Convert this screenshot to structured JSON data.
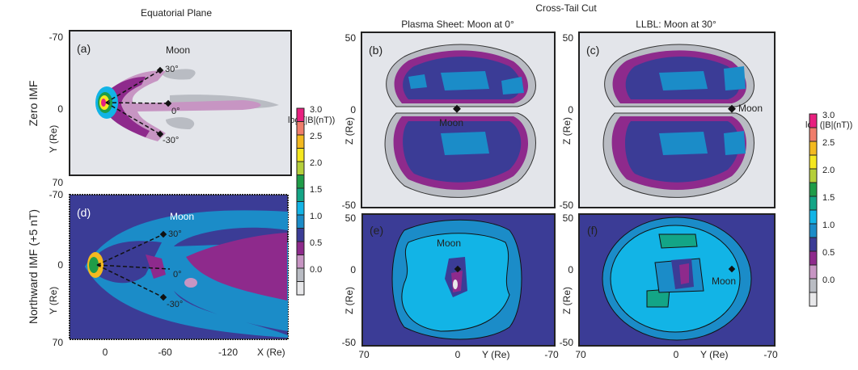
{
  "chart_data": {
    "type": "heatmap",
    "column_titles": {
      "equatorial": "Equatorial Plane",
      "cross_tail": "Cross-Tail Cut",
      "plasma_sheet": "Plasma Sheet: Moon at 0°",
      "llbl": "LLBL: Moon at 30°"
    },
    "row_labels": {
      "zero": "Zero IMF",
      "northward": "Northward IMF (+5 nT)"
    },
    "panels": {
      "a": {
        "label": "(a)",
        "moon": "Moon",
        "angles": [
          "30°",
          "0°",
          "-30°"
        ],
        "ylabel": "Y (Re)",
        "yticks": [
          "-70",
          "0",
          "70"
        ]
      },
      "b": {
        "label": "(b)",
        "moon": "Moon",
        "ylabel": "Z (Re)",
        "yticks": [
          "50",
          "0",
          "-50"
        ]
      },
      "c": {
        "label": "(c)",
        "moon": "Moon",
        "ylabel": "Z (Re)",
        "yticks": [
          "50",
          "0",
          "-50"
        ]
      },
      "d": {
        "label": "(d)",
        "moon": "Moon",
        "angles": [
          "30°",
          "0°",
          "-30°"
        ],
        "ylabel": "Y (Re)",
        "yticks": [
          "-70",
          "0",
          "70"
        ],
        "xticks": [
          "0",
          "-60",
          "-120"
        ],
        "xlabel": "X (Re)"
      },
      "e": {
        "label": "(e)",
        "moon": "Moon",
        "ylabel": "Z (Re)",
        "yticks": [
          "50",
          "0",
          "-50"
        ],
        "xticks": [
          "70",
          "0",
          "-70"
        ],
        "xlabel": "Y (Re)"
      },
      "f": {
        "label": "(f)",
        "moon": "Moon",
        "ylabel": "Z (Re)",
        "yticks": [
          "50",
          "0",
          "-50"
        ],
        "xticks": [
          "70",
          "0",
          "-70"
        ],
        "xlabel": "Y (Re)"
      }
    },
    "colorbar": {
      "title": "log (|B|(nT))",
      "ticks": [
        "3.0",
        "2.5",
        "2.0",
        "1.5",
        "1.0",
        "0.5",
        "0.0"
      ],
      "range": [
        0.0,
        3.0
      ],
      "colors": [
        "#e8207f",
        "#ef7d6b",
        "#f3b91f",
        "#f5e71f",
        "#b5cf3a",
        "#1f9c48",
        "#13a586",
        "#12b4e6",
        "#1b8cc8",
        "#3b3c96",
        "#8e2a8c",
        "#c795c3",
        "#b9bcc3",
        "#e8e8ea"
      ]
    }
  }
}
